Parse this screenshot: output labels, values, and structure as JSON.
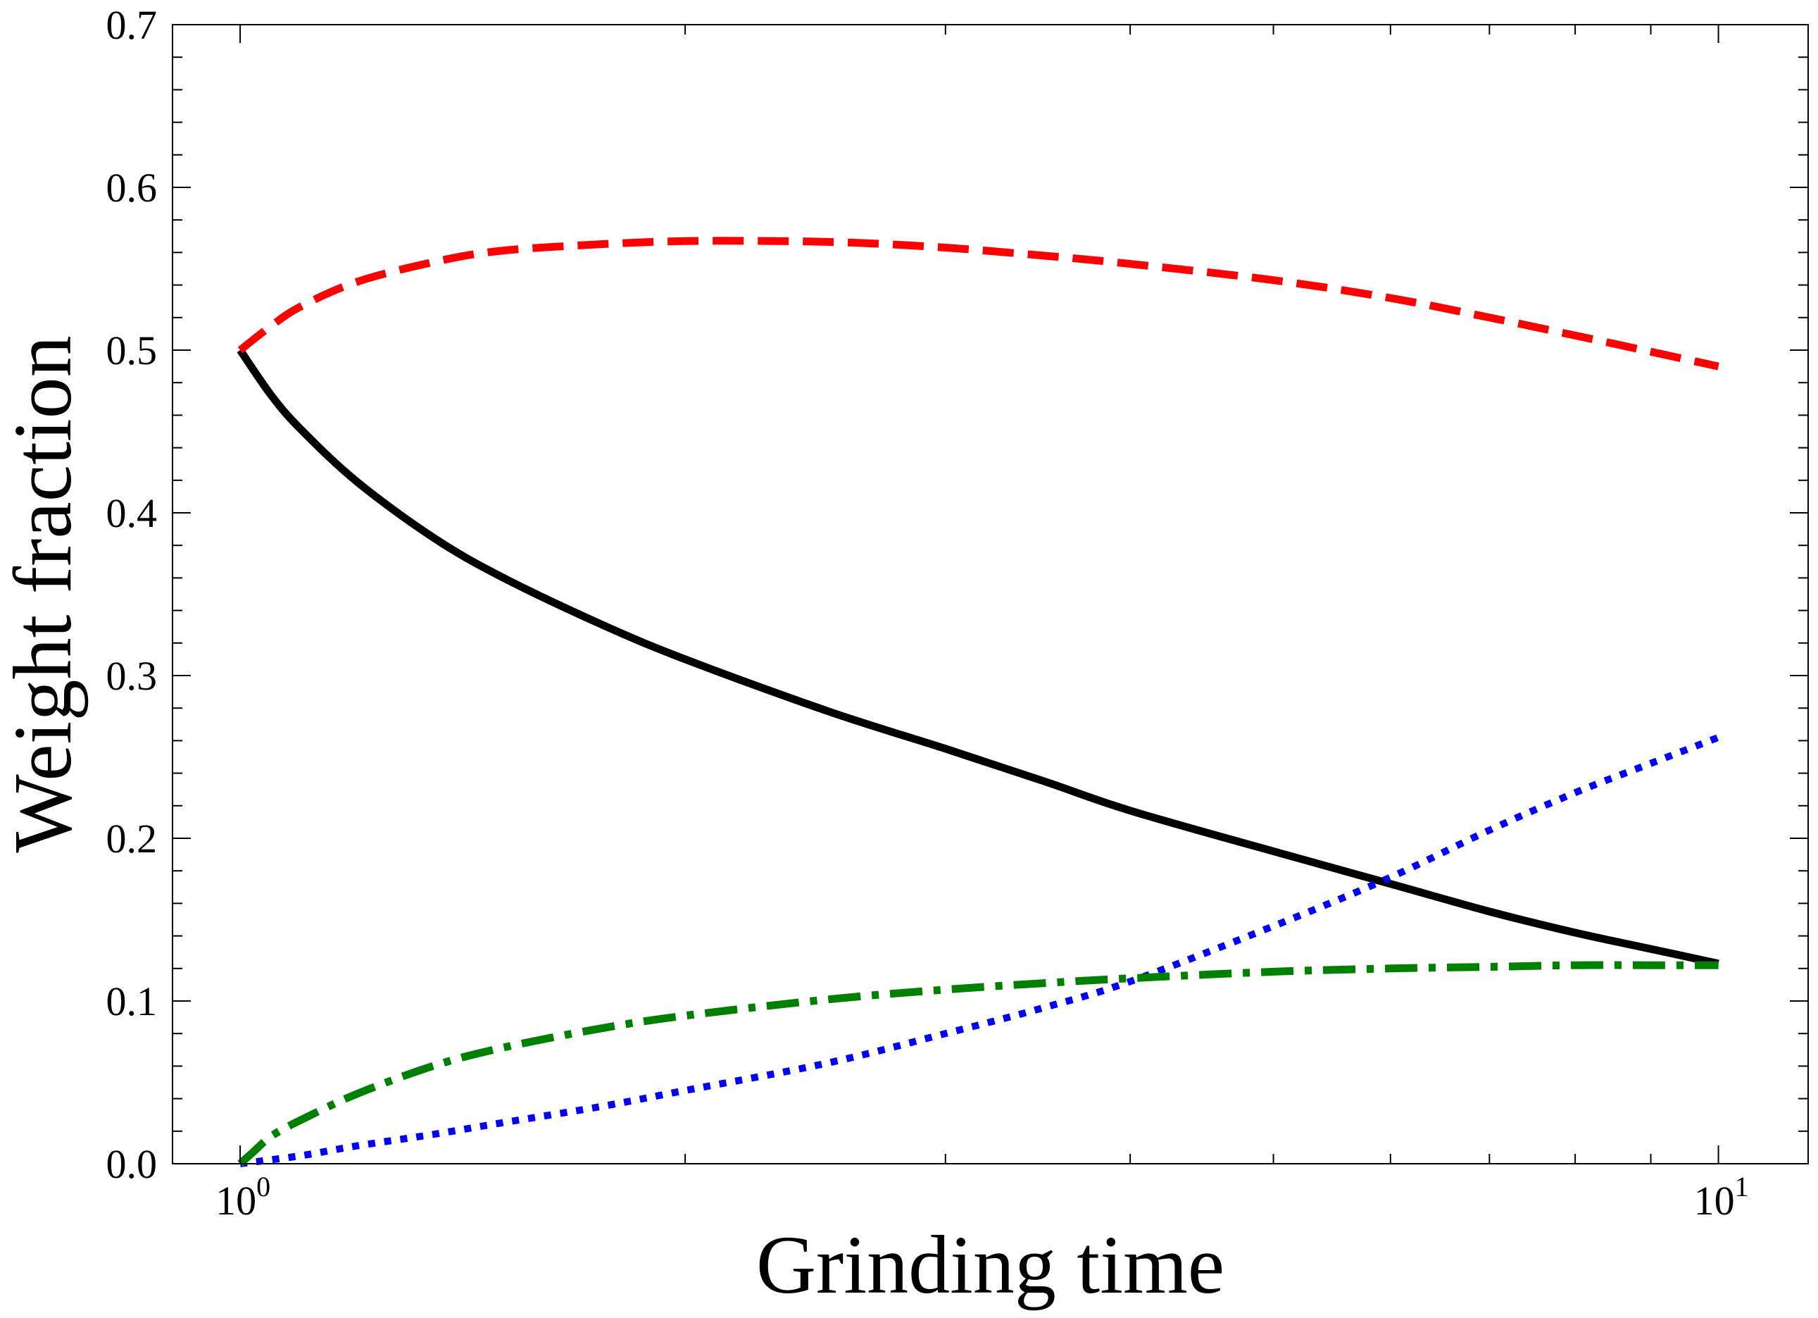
{
  "chart_data": {
    "type": "line",
    "title": "",
    "xlabel": "Grinding time",
    "ylabel": "Weight fraction",
    "xscale": "log",
    "xlim": [
      0.9,
      11.5
    ],
    "ylim": [
      0,
      0.7
    ],
    "x_ticks": [
      {
        "value": 1,
        "base": "10",
        "exp": "0"
      },
      {
        "value": 10,
        "base": "10",
        "exp": "1"
      }
    ],
    "y_ticks": [
      {
        "value": 0.0,
        "label": "0.0"
      },
      {
        "value": 0.1,
        "label": "0.1"
      },
      {
        "value": 0.2,
        "label": "0.2"
      },
      {
        "value": 0.3,
        "label": "0.3"
      },
      {
        "value": 0.4,
        "label": "0.4"
      },
      {
        "value": 0.5,
        "label": "0.5"
      },
      {
        "value": 0.6,
        "label": "0.6"
      },
      {
        "value": 0.7,
        "label": "0.7"
      }
    ],
    "grid": false,
    "legend": "none",
    "series": [
      {
        "style": "solid",
        "color": "#000000",
        "x": [
          1.0,
          1.05,
          1.1,
          1.2,
          1.35,
          1.5,
          1.75,
          2.0,
          2.5,
          3.0,
          3.5,
          4.0,
          5.0,
          6.0,
          7.0,
          8.0,
          9.0,
          10.0
        ],
        "y": [
          0.5,
          0.472,
          0.451,
          0.419,
          0.385,
          0.361,
          0.332,
          0.31,
          0.278,
          0.255,
          0.235,
          0.217,
          0.192,
          0.172,
          0.155,
          0.142,
          0.132,
          0.123
        ]
      },
      {
        "style": "dashed",
        "color": "#ff0000",
        "x": [
          1.0,
          1.05,
          1.1,
          1.2,
          1.35,
          1.5,
          1.75,
          2.0,
          2.3,
          2.6,
          3.0,
          3.5,
          4.0,
          5.0,
          6.0,
          7.0,
          8.0,
          9.0,
          10.0
        ],
        "y": [
          0.5,
          0.515,
          0.527,
          0.542,
          0.554,
          0.561,
          0.565,
          0.567,
          0.567,
          0.566,
          0.563,
          0.558,
          0.553,
          0.543,
          0.532,
          0.52,
          0.509,
          0.499,
          0.49
        ]
      },
      {
        "style": "dotted",
        "color": "#0000ff",
        "x": [
          1.0,
          1.1,
          1.2,
          1.35,
          1.5,
          1.75,
          2.0,
          2.5,
          3.0,
          3.5,
          4.0,
          5.0,
          6.0,
          7.0,
          8.0,
          9.0,
          10.0
        ],
        "y": [
          0.0,
          0.005,
          0.011,
          0.018,
          0.025,
          0.035,
          0.045,
          0.062,
          0.08,
          0.096,
          0.112,
          0.146,
          0.176,
          0.205,
          0.228,
          0.246,
          0.262
        ]
      },
      {
        "style": "dashdot",
        "color": "#008000",
        "x": [
          1.0,
          1.02,
          1.05,
          1.1,
          1.2,
          1.35,
          1.5,
          1.75,
          2.0,
          2.5,
          3.0,
          3.5,
          4.0,
          5.0,
          6.0,
          7.0,
          8.0,
          9.0,
          10.0
        ],
        "y": [
          0.0,
          0.007,
          0.017,
          0.027,
          0.043,
          0.06,
          0.071,
          0.083,
          0.091,
          0.101,
          0.107,
          0.111,
          0.114,
          0.118,
          0.12,
          0.121,
          0.122,
          0.122,
          0.122
        ]
      }
    ]
  }
}
